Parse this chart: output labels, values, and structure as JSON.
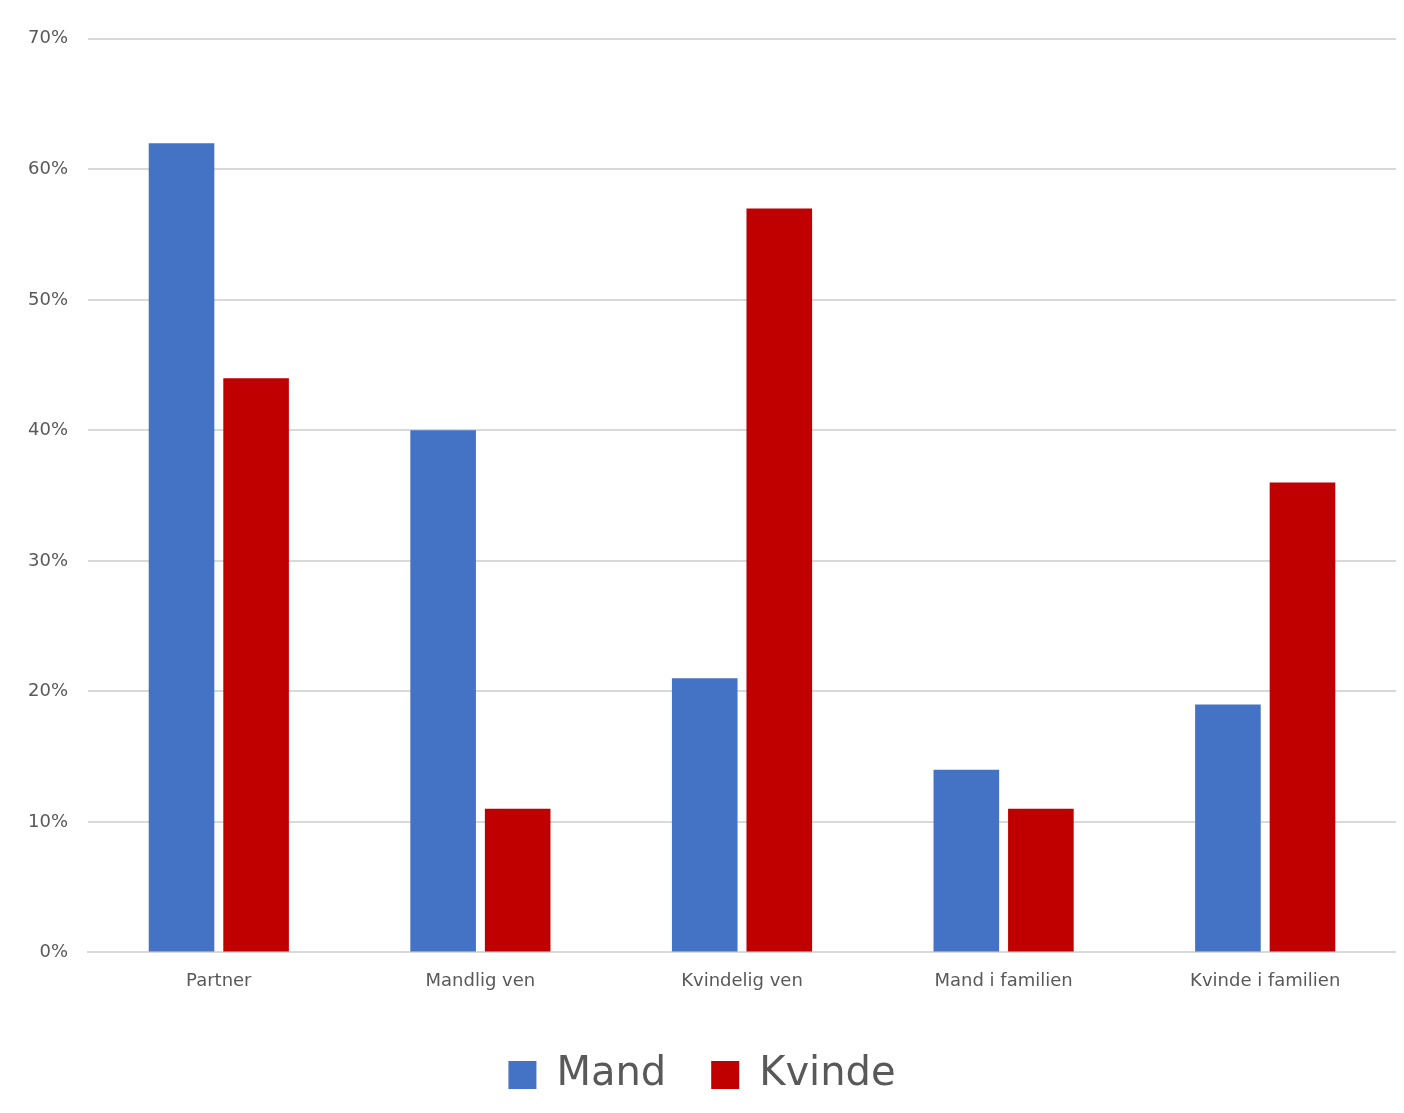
{
  "chart_data": {
    "type": "bar",
    "categories": [
      "Partner",
      "Mandlig ven",
      "Kvindelig ven",
      "Mand i familien",
      "Kvinde i familien"
    ],
    "series": [
      {
        "name": "Mand",
        "color": "#4472c4",
        "values": [
          62,
          40,
          21,
          14,
          19
        ]
      },
      {
        "name": "Kvinde",
        "color": "#c00000",
        "values": [
          44,
          11,
          57,
          11,
          36
        ]
      }
    ],
    "ylim": [
      0,
      70
    ],
    "yticks": [
      {
        "value": 0,
        "label": "0%"
      },
      {
        "value": 10,
        "label": "10%"
      },
      {
        "value": 20,
        "label": "20%"
      },
      {
        "value": 30,
        "label": "30%"
      },
      {
        "value": 40,
        "label": "40%"
      },
      {
        "value": 50,
        "label": "50%"
      },
      {
        "value": 60,
        "label": "60%"
      },
      {
        "value": 70,
        "label": "70%"
      }
    ],
    "grid": "y",
    "legend": "bottom"
  }
}
